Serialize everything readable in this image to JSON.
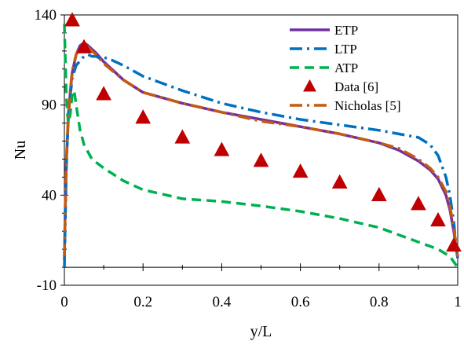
{
  "chart_data": {
    "type": "line",
    "xlabel": "y/L",
    "ylabel": "Nu",
    "xlim": [
      0,
      1
    ],
    "ylim": [
      -10,
      140
    ],
    "x_ticks": [
      "0",
      "0.2",
      "0.4",
      "0.6",
      "0.8",
      "1"
    ],
    "y_ticks": [
      "-10",
      "40",
      "90",
      "140"
    ],
    "grid": false,
    "legend_placement": "top-right",
    "series": [
      {
        "name": "ETP",
        "style": "solid",
        "color": "#7030A0",
        "x": [
          0.0,
          0.002,
          0.005,
          0.01,
          0.015,
          0.02,
          0.03,
          0.04,
          0.05,
          0.06,
          0.08,
          0.1,
          0.15,
          0.2,
          0.3,
          0.4,
          0.5,
          0.6,
          0.7,
          0.8,
          0.85,
          0.9,
          0.93,
          0.95,
          0.97,
          0.98,
          0.99,
          0.995,
          1.0
        ],
        "y": [
          4,
          30,
          58,
          82,
          97,
          108,
          118,
          123,
          124.5,
          123,
          119,
          114,
          104,
          97,
          91,
          86,
          82,
          78,
          74,
          69,
          65,
          59,
          54,
          49,
          40,
          32,
          20,
          12,
          5
        ]
      },
      {
        "name": "LTP",
        "style": "dashdot",
        "color": "#0070C0",
        "x": [
          0.0,
          0.002,
          0.005,
          0.01,
          0.02,
          0.03,
          0.05,
          0.06,
          0.07,
          0.08,
          0.09,
          0.1,
          0.12,
          0.15,
          0.2,
          0.3,
          0.4,
          0.5,
          0.6,
          0.7,
          0.8,
          0.85,
          0.9,
          0.93,
          0.95,
          0.97,
          0.98,
          0.99,
          0.995,
          1.0
        ],
        "y": [
          0,
          22,
          55,
          85,
          105,
          112,
          117,
          118,
          117,
          117,
          116,
          116.5,
          115,
          112,
          106,
          98,
          91,
          86,
          82,
          79,
          76,
          74,
          72,
          68,
          62,
          50,
          40,
          25,
          14,
          5
        ]
      },
      {
        "name": "ATP",
        "style": "dashed",
        "color": "#00B050",
        "x": [
          0.0,
          0.002,
          0.005,
          0.008,
          0.01,
          0.015,
          0.02,
          0.025,
          0.03,
          0.04,
          0.05,
          0.07,
          0.1,
          0.15,
          0.2,
          0.3,
          0.4,
          0.5,
          0.6,
          0.7,
          0.8,
          0.9,
          0.95,
          0.98,
          1.0
        ],
        "y": [
          135,
          118,
          95,
          85,
          80,
          85,
          96,
          98,
          90,
          76,
          68,
          60,
          55,
          48,
          43,
          38,
          36.5,
          34,
          31,
          27,
          22,
          14,
          10,
          6,
          0
        ]
      },
      {
        "name": "Data [6]",
        "style": "marker",
        "marker": "triangle",
        "color": "#C00000",
        "x": [
          0.02,
          0.05,
          0.1,
          0.2,
          0.3,
          0.4,
          0.5,
          0.6,
          0.7,
          0.8,
          0.9,
          0.95,
          0.99
        ],
        "y": [
          137,
          122,
          96,
          83,
          72,
          65,
          59,
          53,
          47,
          40,
          35,
          26,
          12
        ]
      },
      {
        "name": "Nicholas [5]",
        "style": "dashdot",
        "color": "#C55A11",
        "x": [
          0.0,
          0.002,
          0.005,
          0.01,
          0.015,
          0.02,
          0.03,
          0.04,
          0.05,
          0.06,
          0.08,
          0.1,
          0.15,
          0.2,
          0.3,
          0.4,
          0.5,
          0.6,
          0.7,
          0.8,
          0.85,
          0.9,
          0.93,
          0.95,
          0.97,
          0.98,
          0.99,
          0.995,
          1.0
        ],
        "y": [
          6,
          32,
          60,
          84,
          98,
          109,
          118,
          122,
          123.5,
          122,
          118,
          113,
          104,
          97,
          91,
          86,
          81,
          78,
          74,
          69,
          66,
          60,
          55,
          50,
          42,
          34,
          22,
          14,
          6
        ]
      }
    ]
  }
}
